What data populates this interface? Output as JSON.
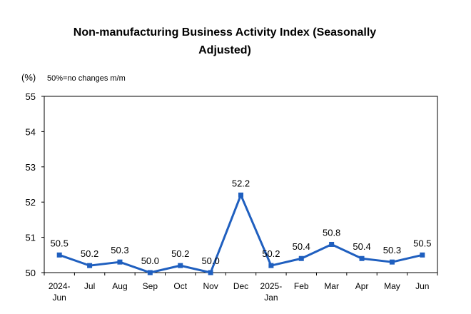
{
  "chart_data": {
    "type": "line",
    "title_lines": [
      "Non-manufacturing Business Activity Index (Seasonally",
      "Adjusted)"
    ],
    "unit": "(%)",
    "note": "50%=no changes m/m",
    "categories": [
      [
        "2024-",
        "Jun"
      ],
      [
        "Jul"
      ],
      [
        "Aug"
      ],
      [
        "Sep"
      ],
      [
        "Oct"
      ],
      [
        "Nov"
      ],
      [
        "Dec"
      ],
      [
        "2025-",
        "Jan"
      ],
      [
        "Feb"
      ],
      [
        "Mar"
      ],
      [
        "Apr"
      ],
      [
        "May"
      ],
      [
        "Jun"
      ]
    ],
    "series": [
      {
        "values": [
          50.5,
          50.2,
          50.3,
          50.0,
          50.2,
          50.0,
          52.2,
          50.2,
          50.4,
          50.8,
          50.4,
          50.3,
          50.5
        ],
        "labels": [
          "50.5",
          "50.2",
          "50.3",
          "50.0",
          "50.2",
          "50.0",
          "52.2",
          "50.2",
          "50.4",
          "50.8",
          "50.4",
          "50.3",
          "50.5"
        ],
        "color": "#1f5fbf"
      }
    ],
    "ylim": [
      50,
      55
    ],
    "yticks": [
      "50",
      "51",
      "52",
      "53",
      "54",
      "55"
    ],
    "grid": false,
    "legend": "none"
  }
}
